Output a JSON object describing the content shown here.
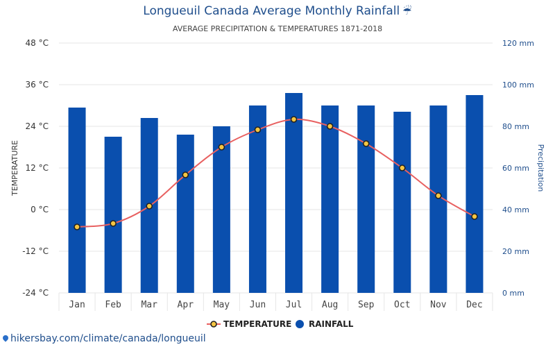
{
  "page": {
    "title": "Longueuil Canada Average Monthly Rainfall",
    "title_icon": "umbrella-rain-icon",
    "subtitle": "AVERAGE PRECIPITATION & TEMPERATURES 1871-2018",
    "source": "hikersbay.com/climate/canada/longueuil"
  },
  "colors": {
    "bar": "#0a4fae",
    "line": "#e86060",
    "marker_fill": "#f5c542",
    "marker_stroke": "#222222",
    "title": "#1f4e8c",
    "right_axis": "#1f4e8c",
    "grid": "#e6e6e6"
  },
  "chart_data": {
    "type": "bar",
    "categories": [
      "Jan",
      "Feb",
      "Mar",
      "Apr",
      "May",
      "Jun",
      "Jul",
      "Aug",
      "Sep",
      "Oct",
      "Nov",
      "Dec"
    ],
    "series": [
      {
        "name": "RAINFALL",
        "type": "bar",
        "axis": "right",
        "values": [
          89,
          75,
          84,
          76,
          80,
          90,
          96,
          90,
          90,
          87,
          90,
          95
        ]
      },
      {
        "name": "TEMPERATURE",
        "type": "line",
        "axis": "left",
        "values": [
          -5,
          -4,
          1,
          10,
          18,
          23,
          26,
          24,
          19,
          12,
          4,
          -2
        ]
      }
    ],
    "y_left": {
      "label": "TEMPERATURE",
      "ticks": [
        "48 °C",
        "36 °C",
        "24 °C",
        "12 °C",
        "0 °C",
        "-12 °C",
        "-24 °C"
      ],
      "lim": [
        -24,
        48
      ]
    },
    "y_right": {
      "label": "Precipitation",
      "ticks": [
        "120 mm",
        "100 mm",
        "80 mm",
        "60 mm",
        "40 mm",
        "20 mm",
        "0 mm"
      ],
      "lim": [
        0,
        120
      ]
    },
    "grid": true,
    "legend": {
      "placement": "bottom-center",
      "items": [
        "TEMPERATURE",
        "RAINFALL"
      ]
    }
  }
}
